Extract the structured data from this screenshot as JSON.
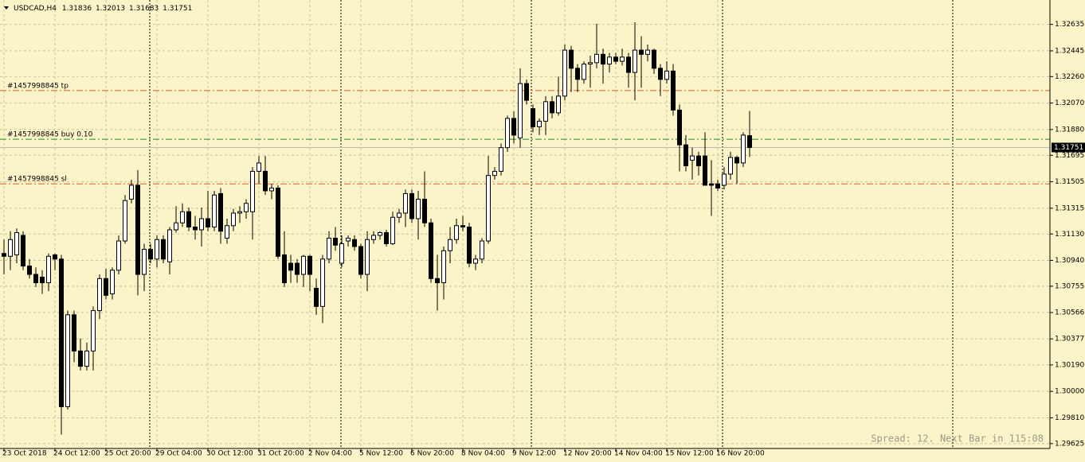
{
  "chart_data": {
    "type": "candlestick",
    "symbol": "USDCAD,H4",
    "header_ohlc": [
      1.31836,
      1.32013,
      1.31683,
      1.31751
    ],
    "status_text": "Spread: 12. Next Bar in 115:08",
    "current_price": 1.31751,
    "up_color": "#ffffff",
    "down_color": "#000000",
    "grid": true,
    "ylim": [
      1.2959,
      1.3281
    ],
    "yticks": [
      1.32635,
      1.32445,
      {
        "value": 1.3226,
        "label": "1.32260"
      },
      {
        "value": 1.3207,
        "label": "1.32070"
      },
      {
        "value": 1.3188,
        "label": "1.31880"
      },
      1.31695,
      1.31505,
      1.31315,
      {
        "value": 1.3113,
        "label": "1.31130"
      },
      {
        "value": 1.3094,
        "label": "1.30940"
      },
      1.30755,
      1.30566,
      1.30377,
      {
        "value": 1.3019,
        "label": "1.30190"
      },
      {
        "value": 1.3,
        "label": "1.30000"
      },
      {
        "value": 1.2981,
        "label": "1.29810"
      },
      1.29625
    ],
    "levels": [
      {
        "label": "#1457998845 tp",
        "value": 1.3216,
        "color": "#e05a2b"
      },
      {
        "label": "#1457998845 buy 0.10",
        "value": 1.3181,
        "color": "#2e8b2e"
      },
      {
        "label": "#1457998845 sl",
        "value": 1.3149,
        "color": "#e05a2b"
      }
    ],
    "categories": [
      "23 Oct 2018",
      null,
      null,
      null,
      null,
      null,
      null,
      null,
      "24 Oct 12:00",
      null,
      null,
      null,
      null,
      null,
      null,
      null,
      "25 Oct 20:00",
      null,
      null,
      null,
      null,
      null,
      null,
      null,
      "29 Oct 04:00",
      null,
      null,
      null,
      null,
      null,
      null,
      null,
      "30 Oct 12:00",
      null,
      null,
      null,
      null,
      null,
      null,
      null,
      "31 Oct 20:00",
      null,
      null,
      null,
      null,
      null,
      null,
      null,
      "2 Nov 04:00",
      null,
      null,
      null,
      null,
      null,
      null,
      null,
      "5 Nov 12:00",
      null,
      null,
      null,
      null,
      null,
      null,
      null,
      "6 Nov 20:00",
      null,
      null,
      null,
      null,
      null,
      null,
      null,
      "8 Nov 04:00",
      null,
      null,
      null,
      null,
      null,
      null,
      null,
      "9 Nov 12:00",
      null,
      null,
      null,
      null,
      null,
      null,
      null,
      "12 Nov 20:00",
      null,
      null,
      null,
      null,
      null,
      null,
      null,
      "14 Nov 04:00",
      null,
      null,
      null,
      null,
      null,
      null,
      null,
      "15 Nov 12:00",
      null,
      null,
      null,
      null,
      null,
      null,
      null,
      "16 Nov 20:00",
      null,
      null,
      null,
      null,
      null
    ],
    "open": [
      1.3099,
      1.3097,
      1.3098,
      1.3112,
      1.309,
      1.3084,
      1.3082,
      1.3078,
      1.3098,
      1.3095,
      1.2989,
      1.3055,
      1.3029,
      1.3018,
      1.3029,
      1.3058,
      1.3081,
      1.307,
      1.3087,
      1.3108,
      1.3138,
      1.3148,
      1.3084,
      1.3102,
      1.3095,
      1.3109,
      1.3093,
      1.3116,
      1.3121,
      1.3129,
      1.3118,
      1.3116,
      1.3124,
      1.3118,
      1.3142,
      1.311,
      1.3119,
      1.3128,
      1.3129,
      1.3129,
      1.3158,
      1.3158,
      1.3144,
      1.3146,
      1.3098,
      1.3092,
      1.3092,
      1.3084,
      1.3097,
      1.3074,
      1.3061,
      1.3095,
      1.311,
      1.3092,
      1.3108,
      1.3109,
      1.3104,
      1.3084,
      1.3109,
      1.3112,
      1.3114,
      1.3106,
      1.3125,
      1.3128,
      1.3142,
      1.3124,
      1.3138,
      1.3121,
      1.3081,
      1.3078,
      1.3101,
      1.3109,
      1.3119,
      1.3118,
      1.3092,
      1.3095,
      1.3108,
      1.3155,
      1.3158,
      1.3175,
      1.3196,
      1.3182,
      1.3221,
      1.3203,
      1.319,
      1.3194,
      1.3208,
      1.32,
      1.3212,
      1.3245,
      1.3232,
      1.3224,
      1.3235,
      1.3236,
      1.3242,
      1.3235,
      1.324,
      1.3237,
      1.324,
      1.3229,
      1.3245,
      1.3242,
      1.3245,
      1.3232,
      1.3224,
      1.323,
      1.3202,
      1.3177,
      1.3166,
      1.3169,
      1.3169,
      1.3149,
      1.3149,
      1.3148,
      1.3156,
      1.3168,
      1.3164,
      1.31836
    ],
    "high": [
      1.3109,
      1.3115,
      1.3117,
      1.3115,
      1.3095,
      1.3089,
      1.3087,
      1.3099,
      1.3099,
      1.3098,
      1.3058,
      1.3058,
      1.3038,
      1.3035,
      1.3061,
      1.3084,
      1.3088,
      1.3089,
      1.3112,
      1.3141,
      1.3152,
      1.3159,
      1.3106,
      1.3106,
      1.3112,
      1.3112,
      1.3118,
      1.3133,
      1.3135,
      1.3132,
      1.3126,
      1.3132,
      1.3144,
      1.3144,
      1.3146,
      1.3124,
      1.3131,
      1.3133,
      1.3138,
      1.3161,
      1.3169,
      1.3169,
      1.3149,
      1.3148,
      1.3115,
      1.3098,
      1.3095,
      1.3098,
      1.3098,
      1.3081,
      1.3098,
      1.3115,
      1.3118,
      1.3112,
      1.3112,
      1.3112,
      1.3106,
      1.3115,
      1.3115,
      1.3115,
      1.3116,
      1.3129,
      1.3131,
      1.3145,
      1.3145,
      1.3144,
      1.3158,
      1.3124,
      1.3098,
      1.3104,
      1.3118,
      1.3124,
      1.3126,
      1.3121,
      1.3098,
      1.311,
      1.3169,
      1.3161,
      1.3178,
      1.3198,
      1.3201,
      1.3232,
      1.3224,
      1.3206,
      1.3196,
      1.3212,
      1.3212,
      1.3226,
      1.3249,
      1.3248,
      1.3235,
      1.3237,
      1.3241,
      1.3264,
      1.3246,
      1.3243,
      1.3243,
      1.3246,
      1.3243,
      1.3265,
      1.3255,
      1.3249,
      1.3246,
      1.3235,
      1.3237,
      1.3235,
      1.3206,
      1.3184,
      1.3175,
      1.3172,
      1.3186,
      1.3166,
      1.3152,
      1.3161,
      1.3172,
      1.3169,
      1.3186,
      1.32013
    ],
    "low": [
      1.3084,
      1.3087,
      1.3092,
      1.3087,
      1.3081,
      1.3075,
      1.307,
      1.3072,
      1.3087,
      1.2969,
      1.2987,
      1.3021,
      1.3015,
      1.3015,
      1.3015,
      1.3052,
      1.3066,
      1.3066,
      1.3084,
      1.3106,
      1.3135,
      1.3069,
      1.3072,
      1.3092,
      1.3089,
      1.3092,
      1.3084,
      1.3114,
      1.3118,
      1.3115,
      1.3109,
      1.3104,
      1.3115,
      1.3115,
      1.3106,
      1.3106,
      1.3115,
      1.3121,
      1.3124,
      1.3109,
      1.3149,
      1.3141,
      1.3138,
      1.3095,
      1.3075,
      1.3078,
      1.3078,
      1.3075,
      1.3072,
      1.3055,
      1.3049,
      1.3092,
      1.3101,
      1.3089,
      1.3104,
      1.3101,
      1.3081,
      1.3072,
      1.3106,
      1.3109,
      1.3104,
      1.3105,
      1.3121,
      1.3118,
      1.3121,
      1.3109,
      1.3118,
      1.3078,
      1.3058,
      1.3066,
      1.3092,
      1.3106,
      1.3115,
      1.3089,
      1.3087,
      1.3092,
      1.3106,
      1.3152,
      1.3155,
      1.3172,
      1.3178,
      1.3175,
      1.3206,
      1.3186,
      1.3184,
      1.3184,
      1.3196,
      1.3198,
      1.3209,
      1.3215,
      1.3215,
      1.3221,
      1.3218,
      1.3232,
      1.3221,
      1.3229,
      1.3235,
      1.3234,
      1.3218,
      1.3209,
      1.3218,
      1.3237,
      1.3228,
      1.3212,
      1.3221,
      1.3198,
      1.3158,
      1.3158,
      1.3152,
      1.3155,
      1.3148,
      1.3126,
      1.3144,
      1.3145,
      1.3152,
      1.3149,
      1.3161,
      1.31683
    ],
    "close": [
      1.3097,
      1.3109,
      1.3114,
      1.309,
      1.3084,
      1.3078,
      1.3078,
      1.3097,
      1.3095,
      1.2989,
      1.3055,
      1.3029,
      1.3018,
      1.3029,
      1.3058,
      1.3081,
      1.3069,
      1.3087,
      1.3108,
      1.3137,
      1.3148,
      1.3084,
      1.3102,
      1.3095,
      1.3109,
      1.3095,
      1.3116,
      1.3121,
      1.3129,
      1.3118,
      1.3116,
      1.3124,
      1.3118,
      1.3141,
      1.3115,
      1.3119,
      1.3128,
      1.3129,
      1.3135,
      1.3158,
      1.3164,
      1.3144,
      1.3146,
      1.3097,
      1.3078,
      1.3087,
      1.3084,
      1.3097,
      1.3084,
      1.3061,
      1.3095,
      1.311,
      1.3105,
      1.3106,
      1.311,
      1.3104,
      1.3084,
      1.3109,
      1.3112,
      1.3114,
      1.3106,
      1.3125,
      1.3128,
      1.3142,
      1.3124,
      1.3138,
      1.3121,
      1.3081,
      1.3078,
      1.3101,
      1.3109,
      1.3119,
      1.3118,
      1.3092,
      1.3095,
      1.3108,
      1.3155,
      1.3158,
      1.3175,
      1.3196,
      1.3184,
      1.3221,
      1.3209,
      1.319,
      1.3194,
      1.3208,
      1.32,
      1.3212,
      1.3245,
      1.3232,
      1.3224,
      1.3235,
      1.3236,
      1.3242,
      1.3235,
      1.324,
      1.3237,
      1.324,
      1.3229,
      1.3245,
      1.3242,
      1.3245,
      1.3232,
      1.3224,
      1.323,
      1.3202,
      1.3177,
      1.3162,
      1.3169,
      1.3162,
      1.3148,
      1.3148,
      1.3146,
      1.3156,
      1.3168,
      1.3164,
      1.3184,
      1.31751
    ]
  }
}
